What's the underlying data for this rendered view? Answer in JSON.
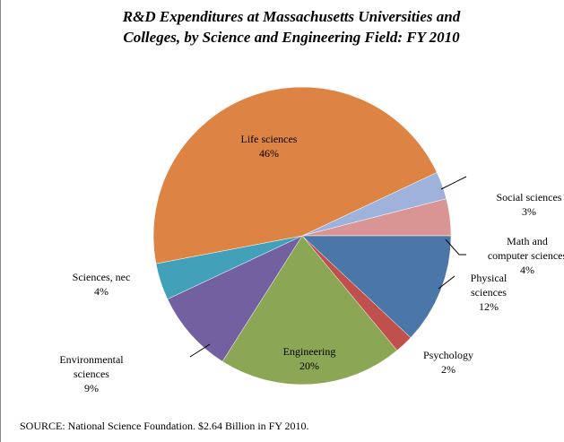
{
  "chart_data": {
    "type": "pie",
    "title": [
      "R&D Expenditures at Massachusetts Universities and",
      "Colleges, by Science and Engineering Field: FY 2010"
    ],
    "categories": [
      "Social sciences",
      "Math and computer sciences",
      "Physical sciences",
      "Psychology",
      "Engineering",
      "Environmental sciences",
      "Sciences, nec",
      "Life sciences"
    ],
    "values": [
      3,
      4,
      12,
      2,
      20,
      9,
      4,
      46
    ],
    "value_labels": [
      "3%",
      "4%",
      "12%",
      "2%",
      "20%",
      "9%",
      "4%",
      "46%"
    ],
    "colors": [
      "#9EB2DC",
      "#D99594",
      "#4A76A8",
      "#C0504D",
      "#8BA654",
      "#7360A0",
      "#42A0B8",
      "#DD8344"
    ],
    "source": "SOURCE: National Science Foundation. $2.64 Billion in FY 2010."
  }
}
